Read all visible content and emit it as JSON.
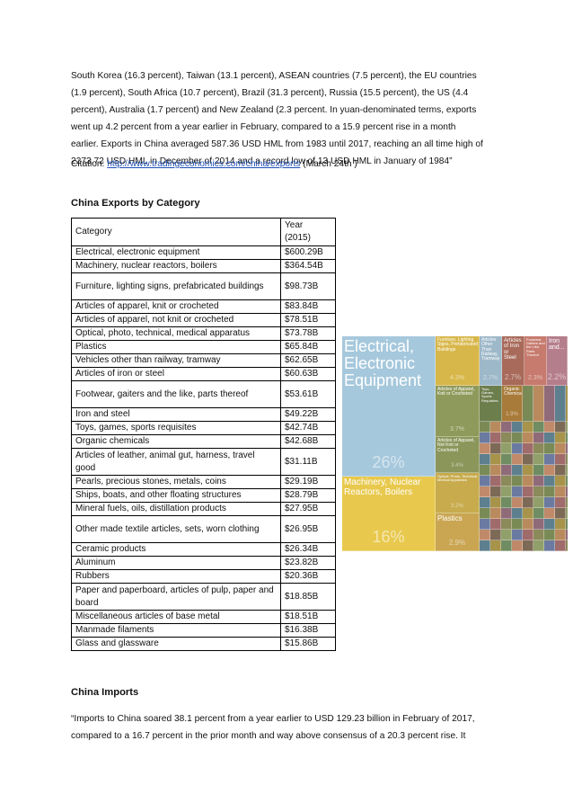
{
  "intro_lines": [
    "South Korea (16.3 percent), Taiwan (13.1 percent), ASEAN countries (7.5 percent), the EU countries",
    "(1.9 percent), South Africa (10.7 percent), Brazil (31.3 percent), Russia (15.5 percent), the US (4.4",
    "percent), Australia (1.7 percent) and New Zealand (2.3 percent. In yuan-denominated terms, exports",
    "went up 4.2 percent from a year earlier in February, compared to a 15.9 percent rise in a month",
    "earlier. Exports in China averaged 587.36 USD HML from 1983 until 2017, reaching an all time high of",
    "2273.72 USD HML in December of 2014 and a record low of 13 USD HML in January of 1984”"
  ],
  "citation": {
    "label": "Citation: ",
    "url": "http://www.tradingeconomics.com/china/exports",
    "suffix": " (March 24th )"
  },
  "exports_heading": "China Exports by Category",
  "table": {
    "header_category": "Category",
    "header_year": "Year\n(2015)",
    "rows": [
      [
        "Electrical, electronic equipment",
        "$600.29B"
      ],
      [
        "Machinery, nuclear reactors, boilers",
        "$364.54B"
      ],
      [
        "Furniture, lighting signs, prefabricated buildings",
        "$98.73B"
      ],
      [
        "Articles of apparel, knit or crocheted",
        "$83.84B"
      ],
      [
        "Articles of apparel, not knit or crocheted",
        "$78.51B"
      ],
      [
        "Optical, photo, technical, medical apparatus",
        "$73.78B"
      ],
      [
        "Plastics",
        "$65.84B"
      ],
      [
        "Vehicles other than railway, tramway",
        "$62.65B"
      ],
      [
        "Articles of iron or steel",
        "$60.63B"
      ],
      [
        "Footwear, gaiters and the like, parts thereof",
        "$53.61B"
      ],
      [
        "Iron and steel",
        "$49.22B"
      ],
      [
        "Toys, games, sports requisites",
        "$42.74B"
      ],
      [
        "Organic chemicals",
        "$42.68B"
      ],
      [
        "Articles of leather, animal gut, harness, travel good",
        "$31.11B"
      ],
      [
        "Pearls, precious stones, metals, coins",
        "$29.19B"
      ],
      [
        "Ships, boats, and other floating structures",
        "$28.79B"
      ],
      [
        "Mineral fuels, oils, distillation products",
        "$27.95B"
      ],
      [
        "Other made textile articles, sets, worn clothing",
        "$26.95B"
      ],
      [
        "Ceramic products",
        "$26.34B"
      ],
      [
        "Aluminum",
        "$23.82B"
      ],
      [
        "Rubbers",
        "$20.36B"
      ],
      [
        "Paper and paperboard, articles of pulp, paper and board",
        "$18.85B"
      ],
      [
        "Miscellaneous articles of base metal",
        "$18.51B"
      ],
      [
        "Manmade filaments",
        "$16.38B"
      ],
      [
        "Glass and glassware",
        "$15.86B"
      ]
    ]
  },
  "treemap": {
    "tiles": [
      {
        "label": "Electrical,\nElectronic\nEquipment",
        "pct": "26%",
        "color": "#a6c8dc"
      },
      {
        "label": "Machinery, Nuclear\nReactors, Boilers",
        "pct": "16%",
        "color": "#e8c94e"
      },
      {
        "label": "Furniture, Lighting\nSigns, Prefabricated\nBuildings",
        "pct": "4.3%",
        "color": "#d8b74a"
      },
      {
        "label": "Articles\nOther Than\nRailway,\nTramway",
        "pct": "2.7%",
        "color": "#9db8c9"
      },
      {
        "label": "Articles\nof Iron or\nSteel",
        "pct": "2.7%",
        "color": "#a86a5a"
      },
      {
        "label": "Footwear,\nGaiters and\nthe Like,\nParts Thereof",
        "pct": "2.3%",
        "color": "#c77b6e"
      },
      {
        "label": "Iron\nand...",
        "pct": "2.2%",
        "color": "#b57e8c"
      },
      {
        "label": "Articles of Apparel,\nKnit or Crocheted",
        "pct": "3.7%",
        "color": "#8e9a5b"
      },
      {
        "label": "Articles of Apparel,\nNot Knit or Crocheted",
        "pct": "3.4%",
        "color": "#8a965a"
      },
      {
        "label": "Optical, Photo, Technical,\nMedical Apparatus",
        "pct": "3.2%",
        "color": "#c7ab4d"
      },
      {
        "label": "Plastics",
        "pct": "2.9%",
        "color": "#caa653"
      },
      {
        "label": "Toys,\nGames,\nSports\nRequisites",
        "pct": "",
        "color": "#6d7e4d"
      },
      {
        "label": "Organic\nChemicals",
        "pct": "1.9%",
        "color": "#a97b3a"
      }
    ]
  }
}
